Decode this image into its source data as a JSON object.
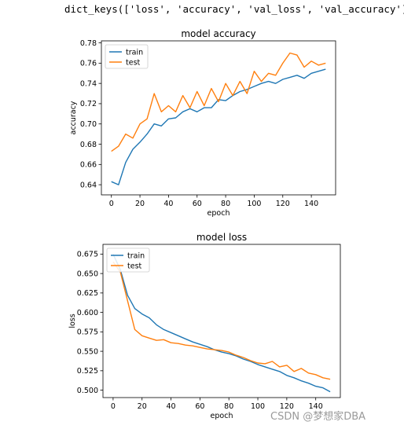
{
  "header_text": "dict_keys(['loss', 'accuracy', 'val_loss', 'val_accuracy'])",
  "watermark": "CSDN @梦想家DBA",
  "colors": {
    "train": "#1f77b4",
    "test": "#ff7f0e"
  },
  "chart_data": [
    {
      "type": "line",
      "title": "model accuracy",
      "xlabel": "epoch",
      "ylabel": "accuracy",
      "xlim": [
        -7,
        157
      ],
      "ylim": [
        0.63,
        0.782
      ],
      "xticks": [
        0,
        20,
        40,
        60,
        80,
        100,
        120,
        140
      ],
      "yticks": [
        0.64,
        0.66,
        0.68,
        0.7,
        0.72,
        0.74,
        0.76,
        0.78
      ],
      "ytick_labels": [
        "0.64",
        "0.66",
        "0.68",
        "0.70",
        "0.72",
        "0.74",
        "0.76",
        "0.78"
      ],
      "legend": {
        "position": "upper-left",
        "entries": [
          "train",
          "test"
        ]
      },
      "series": [
        {
          "name": "train",
          "x": [
            0,
            5,
            10,
            15,
            20,
            25,
            30,
            35,
            40,
            45,
            50,
            55,
            60,
            65,
            70,
            75,
            80,
            85,
            90,
            95,
            100,
            105,
            110,
            115,
            120,
            125,
            130,
            135,
            140,
            145,
            150
          ],
          "y": [
            0.643,
            0.64,
            0.662,
            0.675,
            0.682,
            0.69,
            0.7,
            0.698,
            0.705,
            0.706,
            0.712,
            0.715,
            0.712,
            0.716,
            0.716,
            0.724,
            0.723,
            0.728,
            0.732,
            0.734,
            0.737,
            0.74,
            0.742,
            0.74,
            0.744,
            0.746,
            0.748,
            0.745,
            0.75,
            0.752,
            0.754
          ]
        },
        {
          "name": "test",
          "x": [
            0,
            5,
            10,
            15,
            20,
            25,
            30,
            35,
            40,
            45,
            50,
            55,
            60,
            65,
            70,
            75,
            80,
            85,
            90,
            95,
            100,
            105,
            110,
            115,
            120,
            125,
            130,
            135,
            140,
            145,
            150
          ],
          "y": [
            0.673,
            0.678,
            0.69,
            0.686,
            0.7,
            0.705,
            0.73,
            0.712,
            0.718,
            0.712,
            0.728,
            0.716,
            0.732,
            0.718,
            0.735,
            0.722,
            0.74,
            0.728,
            0.742,
            0.73,
            0.752,
            0.742,
            0.75,
            0.748,
            0.76,
            0.77,
            0.768,
            0.756,
            0.762,
            0.758,
            0.76
          ]
        }
      ]
    },
    {
      "type": "line",
      "title": "model loss",
      "xlabel": "epoch",
      "ylabel": "loss",
      "xlim": [
        -7,
        157
      ],
      "ylim": [
        0.4905,
        0.6875
      ],
      "xticks": [
        0,
        20,
        40,
        60,
        80,
        100,
        120,
        140
      ],
      "yticks": [
        0.5,
        0.525,
        0.55,
        0.575,
        0.6,
        0.625,
        0.65,
        0.675
      ],
      "ytick_labels": [
        "0.500",
        "0.525",
        "0.550",
        "0.575",
        "0.600",
        "0.625",
        "0.650",
        "0.675"
      ],
      "legend": {
        "position": "upper-left",
        "entries": [
          "train",
          "test"
        ]
      },
      "series": [
        {
          "name": "train",
          "x": [
            0,
            5,
            10,
            15,
            20,
            25,
            30,
            35,
            40,
            45,
            50,
            55,
            60,
            65,
            70,
            75,
            80,
            85,
            90,
            95,
            100,
            105,
            110,
            115,
            120,
            125,
            130,
            135,
            140,
            145,
            150
          ],
          "y": [
            0.675,
            0.655,
            0.622,
            0.605,
            0.598,
            0.593,
            0.584,
            0.578,
            0.574,
            0.57,
            0.566,
            0.562,
            0.559,
            0.556,
            0.552,
            0.549,
            0.547,
            0.544,
            0.54,
            0.537,
            0.533,
            0.53,
            0.527,
            0.524,
            0.519,
            0.516,
            0.512,
            0.509,
            0.505,
            0.503,
            0.498
          ]
        },
        {
          "name": "test",
          "x": [
            0,
            5,
            10,
            15,
            20,
            25,
            30,
            35,
            40,
            45,
            50,
            55,
            60,
            65,
            70,
            75,
            80,
            85,
            90,
            95,
            100,
            105,
            110,
            115,
            120,
            125,
            130,
            135,
            140,
            145,
            150
          ],
          "y": [
            0.665,
            0.652,
            0.615,
            0.578,
            0.57,
            0.567,
            0.564,
            0.565,
            0.561,
            0.56,
            0.558,
            0.557,
            0.555,
            0.553,
            0.552,
            0.551,
            0.549,
            0.545,
            0.542,
            0.538,
            0.535,
            0.534,
            0.537,
            0.53,
            0.532,
            0.524,
            0.528,
            0.522,
            0.52,
            0.516,
            0.514
          ]
        }
      ]
    }
  ]
}
